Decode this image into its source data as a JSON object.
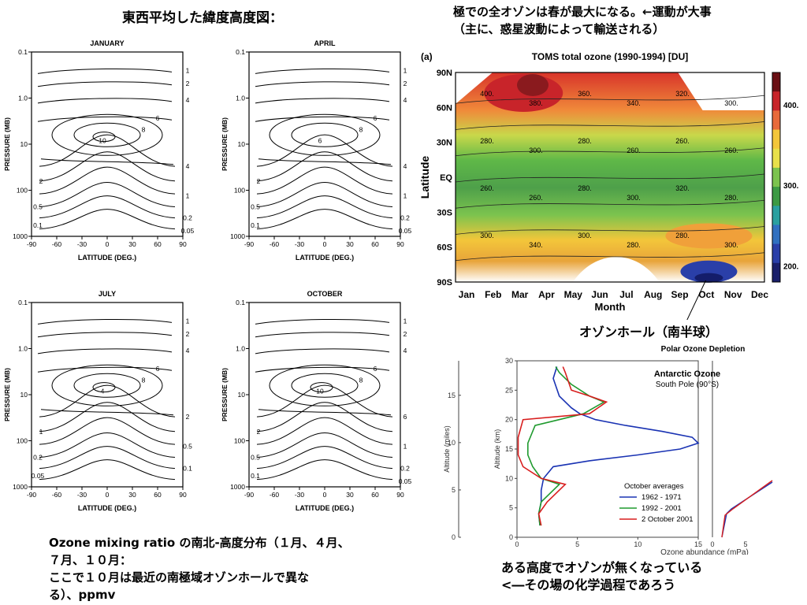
{
  "headings": {
    "left_title": "東西平均した緯度高度図：",
    "right_title_l1": "極での全オゾンは春が最大になる。←運動が大事",
    "right_title_l2": "（主に、惑星波動によって輸送される）",
    "bottom_left_l1": "Ozone mixing ratio の南北-高度分布（１月、４月、",
    "bottom_left_l2": "７月、１０月：",
    "bottom_left_l3": "ここで１０月は最近の南極域オゾンホールで異な",
    "bottom_left_l4": "る）、ppmv",
    "hole_note": "オゾンホール（南半球）",
    "bottom_right_l1": "ある高度でオゾンが無くなっている",
    "bottom_right_l2": "<―その場の化学過程であろう"
  },
  "chart_data": [
    {
      "type": "contour",
      "title": "JANUARY",
      "xlabel": "LATITUDE (DEG.)",
      "ylabel": "PRESSURE (MB)",
      "xlim": [
        -90,
        90
      ],
      "xticks": [
        "-90",
        "-60",
        "-30",
        "0",
        "30",
        "60",
        "90"
      ],
      "yticks": [
        "0.1",
        "1.0",
        "10",
        "100",
        "1000"
      ],
      "contour_labels": [
        "1",
        "2",
        "4",
        "6",
        "8",
        "10",
        "4",
        "2",
        "1",
        "0.5",
        "0.2",
        "0.1",
        "0.05"
      ]
    },
    {
      "type": "contour",
      "title": "APRIL",
      "xlabel": "LATITUDE (DEG.)",
      "ylabel": "PRESSURE (MB)",
      "xlim": [
        -90,
        90
      ],
      "xticks": [
        "-90",
        "-60",
        "-30",
        "0",
        "30",
        "60",
        "90"
      ],
      "yticks": [
        "0.1",
        "1.0",
        "10",
        "100",
        "1000"
      ],
      "contour_labels": [
        "1",
        "2",
        "4",
        "6",
        "8",
        "6",
        "4",
        "2",
        "1",
        "0.5",
        "0.2",
        "0.1",
        "0.05"
      ]
    },
    {
      "type": "contour",
      "title": "JULY",
      "xlabel": "LATITUDE (DEG.)",
      "ylabel": "PRESSURE (MB)",
      "xlim": [
        -90,
        90
      ],
      "xticks": [
        "-90",
        "-60",
        "-30",
        "0",
        "30",
        "60",
        "90"
      ],
      "yticks": [
        "0.1",
        "1.0",
        "10",
        "100",
        "1000"
      ],
      "contour_labels": [
        "1",
        "2",
        "4",
        "6",
        "8",
        "4",
        "2",
        "1",
        "0.5",
        "0.2",
        "0.1",
        "0.05"
      ]
    },
    {
      "type": "contour",
      "title": "OCTOBER",
      "xlabel": "LATITUDE (DEG.)",
      "ylabel": "PRESSURE (MB)",
      "xlim": [
        -90,
        90
      ],
      "xticks": [
        "-90",
        "-60",
        "-30",
        "0",
        "30",
        "60",
        "90"
      ],
      "yticks": [
        "0.1",
        "1.0",
        "10",
        "100",
        "1000"
      ],
      "contour_labels": [
        "1",
        "2",
        "4",
        "6",
        "8",
        "10",
        "6",
        "2",
        "1",
        "0.5",
        "0.2",
        "0.1",
        "0.05"
      ]
    },
    {
      "type": "heatmap",
      "panel_label": "(a)",
      "title": "TOMS total ozone (1990-1994) [DU]",
      "xlabel": "Month",
      "ylabel": "Latitude",
      "x": [
        "Jan",
        "Feb",
        "Mar",
        "Apr",
        "May",
        "Jun",
        "Jul",
        "Aug",
        "Sep",
        "Oct",
        "Nov",
        "Dec"
      ],
      "y": [
        "90N",
        "60N",
        "30N",
        "EQ",
        "30S",
        "60S",
        "90S"
      ],
      "colorbar_ticks": [
        "400.",
        "300.",
        "200."
      ],
      "colorbar_range": [
        180,
        440
      ],
      "contour_labels": [
        "400.",
        "380.",
        "360.",
        "340.",
        "320.",
        "300.",
        "280.",
        "300.",
        "280.",
        "260.",
        "260.",
        "260.",
        "260.",
        "260.",
        "280.",
        "300.",
        "320.",
        "280.",
        "300.",
        "340.",
        "300.",
        "280.",
        "280.",
        "300."
      ],
      "annotation_colors": {
        "high": "#c0141e",
        "mid": "#f7e03a",
        "low": "#1f2f9c"
      }
    },
    {
      "type": "line",
      "title": "Polar Ozone Depletion",
      "inset_title": "Antarctic Ozone",
      "inset_subtitle": "South Pole (90°S)",
      "xlabel": "Ozone abundance (mPa)",
      "ylabel": "Altitude (km)",
      "ylabel2": "Altitude (miles)",
      "xlim": [
        0,
        15
      ],
      "ylim": [
        0,
        30
      ],
      "xticks": [
        "0",
        "5",
        "10",
        "15"
      ],
      "yticks": [
        "0",
        "5",
        "10",
        "15",
        "20",
        "25",
        "30"
      ],
      "yticks_miles": [
        "0",
        "5",
        "10",
        "15"
      ],
      "legend_title": "October averages",
      "legend_position": "bottom-right",
      "series": [
        {
          "name": "1962 - 1971",
          "color": "#1a33b3",
          "x": [
            1.9,
            1.8,
            2.0,
            2.0,
            2.2,
            3.0,
            6.0,
            10.0,
            13.5,
            15.0,
            14.5,
            12.0,
            9.0,
            6.5,
            5.2,
            4.5,
            3.5,
            3.0,
            3.3
          ],
          "y": [
            2,
            4,
            6,
            8,
            10,
            12,
            13,
            14,
            15,
            16,
            17,
            18,
            19,
            20,
            21,
            22,
            24,
            27,
            29
          ]
        },
        {
          "name": "1992 - 2001",
          "color": "#1f9a2e",
          "x": [
            1.9,
            1.8,
            2.0,
            3.5,
            2.0,
            1.3,
            0.9,
            0.9,
            1.5,
            5.5,
            7.2,
            6.0,
            4.5,
            3.5,
            3.2
          ],
          "y": [
            2,
            4,
            6,
            9,
            10,
            12,
            14,
            16,
            19,
            21,
            23,
            24,
            26,
            28,
            29
          ]
        },
        {
          "name": "2 October 2001",
          "color": "#d81e1e",
          "x": [
            2.0,
            1.8,
            2.5,
            4.0,
            2.0,
            0.5,
            0.1,
            0.1,
            0.5,
            6.0,
            7.4,
            6.0,
            4.5,
            4.0,
            3.8
          ],
          "y": [
            2,
            4,
            6,
            9,
            10,
            12,
            14,
            17,
            20,
            21,
            23,
            24,
            25,
            28,
            29
          ]
        }
      ]
    }
  ]
}
